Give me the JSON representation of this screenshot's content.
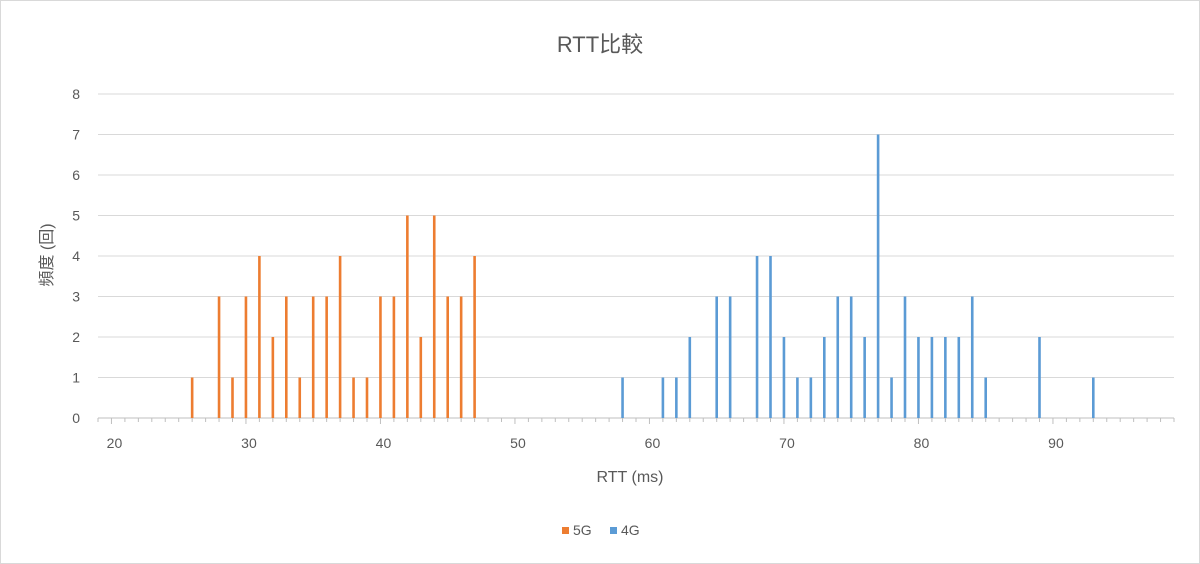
{
  "chart_data": {
    "type": "bar",
    "title": "RTT比較",
    "xlabel": "RTT (ms)",
    "ylabel": "頻度 (回)",
    "xlim": [
      19,
      99
    ],
    "ylim": [
      0,
      8
    ],
    "x_ticks": [
      20,
      30,
      40,
      50,
      60,
      70,
      80,
      90
    ],
    "y_ticks": [
      0,
      1,
      2,
      3,
      4,
      5,
      6,
      7,
      8
    ],
    "grid": true,
    "legend_position": "bottom-center",
    "series": [
      {
        "name": "5G",
        "color": "#ed7d31",
        "points": [
          {
            "x": 26,
            "y": 1
          },
          {
            "x": 28,
            "y": 3
          },
          {
            "x": 29,
            "y": 1
          },
          {
            "x": 30,
            "y": 3
          },
          {
            "x": 31,
            "y": 4
          },
          {
            "x": 32,
            "y": 2
          },
          {
            "x": 33,
            "y": 3
          },
          {
            "x": 34,
            "y": 1
          },
          {
            "x": 35,
            "y": 3
          },
          {
            "x": 36,
            "y": 3
          },
          {
            "x": 37,
            "y": 4
          },
          {
            "x": 38,
            "y": 1
          },
          {
            "x": 39,
            "y": 1
          },
          {
            "x": 40,
            "y": 3
          },
          {
            "x": 41,
            "y": 3
          },
          {
            "x": 42,
            "y": 5
          },
          {
            "x": 43,
            "y": 2
          },
          {
            "x": 44,
            "y": 5
          },
          {
            "x": 45,
            "y": 3
          },
          {
            "x": 46,
            "y": 3
          },
          {
            "x": 47,
            "y": 4
          }
        ]
      },
      {
        "name": "4G",
        "color": "#5b9bd5",
        "points": [
          {
            "x": 58,
            "y": 1
          },
          {
            "x": 61,
            "y": 1
          },
          {
            "x": 62,
            "y": 1
          },
          {
            "x": 63,
            "y": 2
          },
          {
            "x": 65,
            "y": 3
          },
          {
            "x": 66,
            "y": 3
          },
          {
            "x": 68,
            "y": 4
          },
          {
            "x": 69,
            "y": 4
          },
          {
            "x": 70,
            "y": 2
          },
          {
            "x": 71,
            "y": 1
          },
          {
            "x": 72,
            "y": 1
          },
          {
            "x": 73,
            "y": 2
          },
          {
            "x": 74,
            "y": 3
          },
          {
            "x": 75,
            "y": 3
          },
          {
            "x": 76,
            "y": 2
          },
          {
            "x": 77,
            "y": 7
          },
          {
            "x": 78,
            "y": 1
          },
          {
            "x": 79,
            "y": 3
          },
          {
            "x": 80,
            "y": 2
          },
          {
            "x": 81,
            "y": 2
          },
          {
            "x": 82,
            "y": 2
          },
          {
            "x": 83,
            "y": 2
          },
          {
            "x": 84,
            "y": 3
          },
          {
            "x": 85,
            "y": 1
          },
          {
            "x": 89,
            "y": 2
          },
          {
            "x": 93,
            "y": 1
          }
        ]
      }
    ],
    "colors": {
      "gridline": "#d9d9d9",
      "axis": "#bfbfbf",
      "text": "#595959"
    }
  }
}
